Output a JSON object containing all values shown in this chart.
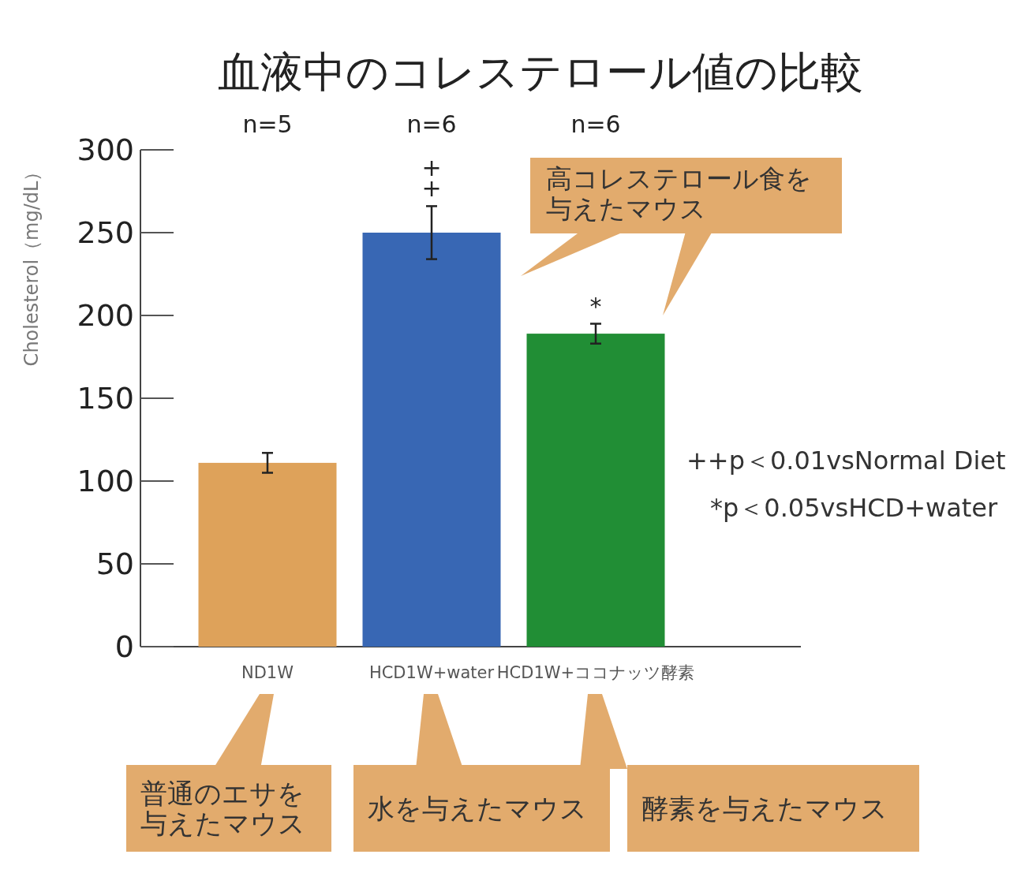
{
  "chart_data": {
    "type": "bar",
    "title": "血液中のコレステロール値の比較",
    "ylabel": "Cholesterol（mg/dL）",
    "categories": [
      "ND1W",
      "HCD1W+water",
      "HCD1W+ココナッツ酵素"
    ],
    "values": [
      111,
      250,
      189
    ],
    "colors": [
      "#dea25a",
      "#3867b4",
      "#218e35"
    ],
    "errors": [
      6,
      16,
      6
    ],
    "ylim": [
      0,
      300
    ],
    "yticks": [
      0,
      50,
      100,
      150,
      200,
      250,
      300
    ],
    "grid": false,
    "annotations": [
      "n=5",
      "n=6",
      "n=6",
      {
        "text": "++",
        "x": "HCD1W+water",
        "y": 266
      },
      {
        "text": "*",
        "x": "HCD1W+ココナッツ酵素",
        "y": 195
      },
      "++p＜0.01vsNormal Diet",
      "*p＜0.05vsHCD+water",
      "高コレステロール食を与えたマウス",
      "普通のエサを与えたマウス",
      "水を与えたマウス",
      "酵素を与えたマウス"
    ]
  }
}
